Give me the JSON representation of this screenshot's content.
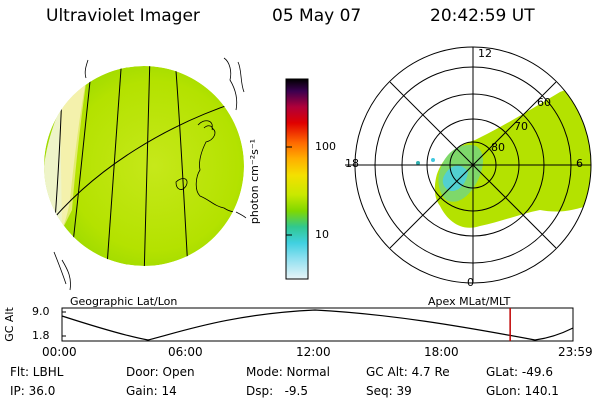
{
  "header": {
    "title": "Ultraviolet Imager",
    "date": "05 May 07",
    "time": "20:42:59 UT"
  },
  "colorbar": {
    "units": "photon cm⁻²s⁻¹",
    "tick_100": "100",
    "tick_10": "10"
  },
  "geo_panel": {
    "label": "Geographic Lat/Lon"
  },
  "polar_panel": {
    "label": "Apex MLat/MLT",
    "mlt_top": "12",
    "mlt_left": "18",
    "mlt_right": "6",
    "mlt_bottom": "0",
    "mlat_60": "60",
    "mlat_70": "70",
    "mlat_80": "80"
  },
  "altitude_plot": {
    "ylabel": "GC Alt",
    "ymax": "9.0",
    "ymin": "1.8",
    "x_ticks": [
      "00:00",
      "06:00",
      "12:00",
      "18:00",
      "23:59"
    ],
    "current_time_fraction": 0.877
  },
  "status": {
    "flt": "Flt: LBHL",
    "door": "Door: Open",
    "mode": "Mode: Normal",
    "gc_alt": "GC Alt: 4.7 Re",
    "glat": "GLat: -49.6",
    "ip": "IP: 36.0",
    "gain": "Gain: 14",
    "dsp": "Dsp:   -9.5",
    "seq": "Seq: 39",
    "glon": "GLon: 140.1"
  },
  "colors": {
    "aurora_green": "#a8e000",
    "marker_red": "#c00000"
  }
}
